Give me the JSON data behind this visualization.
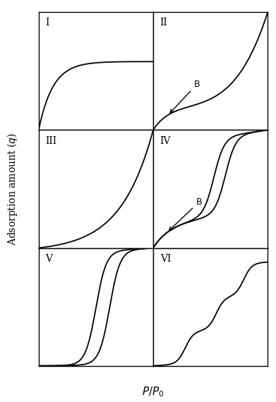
{
  "panel_labels": [
    "I",
    "II",
    "III",
    "IV",
    "V",
    "VI"
  ],
  "background_color": "#ffffff",
  "line_color": "#000000",
  "figsize": [
    3.91,
    5.7
  ],
  "dpi": 100,
  "ylabel": "Adsorption amount ($q$)",
  "xlabel": "$P/P_0$"
}
